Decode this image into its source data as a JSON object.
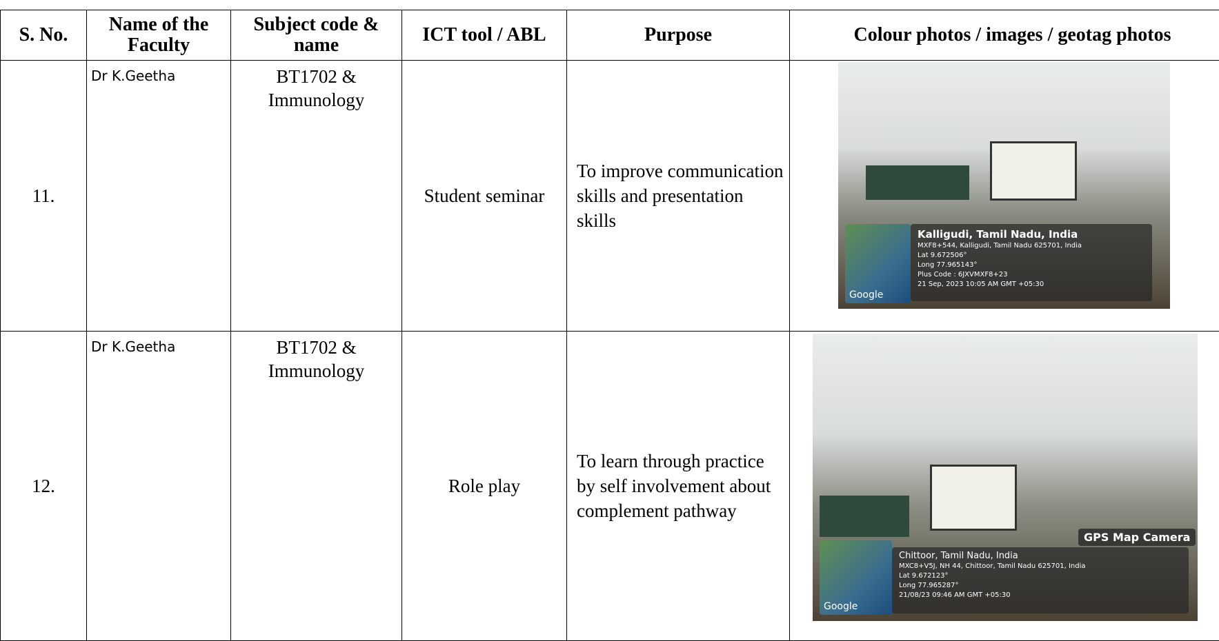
{
  "table": {
    "header": [
      "S. No.",
      "Name of the Faculty",
      "Subject code & name",
      "ICT tool / ABL",
      "Purpose",
      "Colour photos / images / geotag photos"
    ],
    "rows": [
      [
        "11.",
        "Dr K.Geetha",
        "BT1702 & Immunology",
        "Student seminar",
        "To improve communication skills and presentation skills"
      ],
      [
        "12.",
        "Dr K.Geetha",
        "BT1702 & Immunology",
        "Role play",
        "To learn through practice by self involvement about complement pathway"
      ]
    ]
  },
  "photos": [
    {
      "place": "Kalligudi, Tamil Nadu, India",
      "address": "MXF8+544, Kalligudi, Tamil Nadu 625701, India",
      "lat": "Lat 9.672506°",
      "long": "Long 77.965143°",
      "plus_code": "Plus Code : 6JXVMXF8+23",
      "time": "21 Sep, 2023 10:05 AM GMT +05:30",
      "map_label": "Google"
    },
    {
      "badge": "GPS Map Camera",
      "place": "Chittoor, Tamil Nadu, India",
      "address": "MXC8+V5J, NH 44, Chittoor, Tamil Nadu 625701, India",
      "lat": "Lat 9.672123°",
      "long": "Long 77.965287°",
      "time": "21/08/23 09:46 AM GMT +05:30",
      "map_label": "Google"
    }
  ]
}
